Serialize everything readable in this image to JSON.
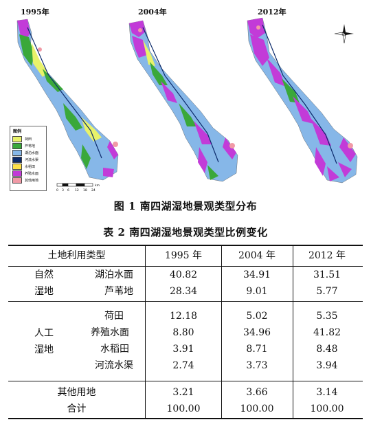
{
  "figure": {
    "years": [
      "1995年",
      "2004年",
      "2012年"
    ],
    "legend": {
      "title": "图例",
      "items": [
        {
          "label": "荷田",
          "color": "#e8f26a"
        },
        {
          "label": "芦苇地",
          "color": "#3aa83a"
        },
        {
          "label": "湖泊水面",
          "color": "#86b7e8"
        },
        {
          "label": "河流水渠",
          "color": "#0b2a6b"
        },
        {
          "label": "水稻田",
          "color": "#ffe14a"
        },
        {
          "label": "养殖水面",
          "color": "#c23bd8"
        },
        {
          "label": "其他用地",
          "color": "#f19aa6"
        }
      ]
    },
    "scale_ticks": [
      "0",
      "3",
      "6",
      "12",
      "18",
      "24"
    ],
    "scale_unit": "km",
    "caption": "图 1   南四湖湿地景观类型分布"
  },
  "table": {
    "caption": "表 2   南四湖湿地景观类型比例变化",
    "header": {
      "col1": "土地利用类型",
      "y1": "1995 年",
      "y2": "2004 年",
      "y3": "2012 年"
    },
    "groups": {
      "natural": {
        "label_line1": "自然",
        "label_line2": "湿地"
      },
      "artificial": {
        "label_line1": "人工",
        "label_line2": "湿地"
      }
    },
    "rows": [
      {
        "type": "湖泊水面",
        "v1995": "40.82",
        "v2004": "34.91",
        "v2012": "31.51"
      },
      {
        "type": "芦苇地",
        "v1995": "28.34",
        "v2004": "9.01",
        "v2012": "5.77"
      },
      {
        "type": "荷田",
        "v1995": "12.18",
        "v2004": "5.02",
        "v2012": "5.35"
      },
      {
        "type": "养殖水面",
        "v1995": "8.80",
        "v2004": "34.96",
        "v2012": "41.82"
      },
      {
        "type": "水稻田",
        "v1995": "3.91",
        "v2004": "8.71",
        "v2012": "8.48"
      },
      {
        "type": "河流水渠",
        "v1995": "2.74",
        "v2004": "3.73",
        "v2012": "3.94"
      },
      {
        "type": "其他用地",
        "v1995": "3.21",
        "v2004": "3.66",
        "v2012": "3.14"
      },
      {
        "type": "合计",
        "v1995": "100.00",
        "v2004": "100.00",
        "v2012": "100.00"
      }
    ]
  }
}
